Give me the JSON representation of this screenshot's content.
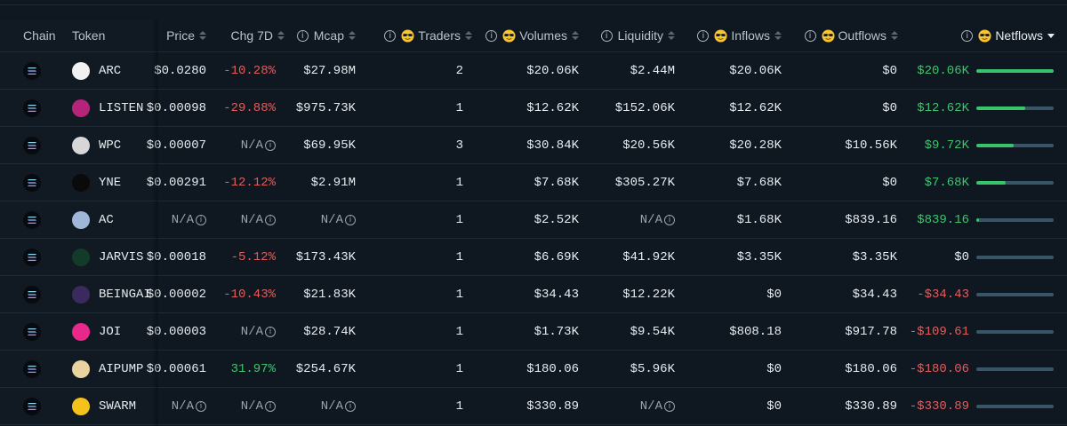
{
  "columns": {
    "chain": "Chain",
    "token": "Token",
    "price": "Price",
    "chg7d": "Chg 7D",
    "mcap": "Mcap",
    "traders": "Traders",
    "volumes": "Volumes",
    "liquidity": "Liquidity",
    "inflows": "Inflows",
    "outflows": "Outflows",
    "netflows": "Netflows"
  },
  "colors": {
    "negative": "#e35d5d",
    "positive": "#3ec46d",
    "bar_track": "#3a5566",
    "bar_fill": "#38c46a"
  },
  "rows": [
    {
      "token": "ARC",
      "price": "$0.0280",
      "chg": "-10.28%",
      "chg_dir": "neg",
      "mcap": "$27.98M",
      "traders": "2",
      "volumes": "$20.06K",
      "liquidity": "$2.44M",
      "inflows": "$20.06K",
      "outflows": "$0",
      "netflows": "$20.06K",
      "net_dir": "pos",
      "net_ratio": 1.0,
      "avatar": "#f2f2f2"
    },
    {
      "token": "LISTEN",
      "price": "$0.00098",
      "chg": "-29.88%",
      "chg_dir": "neg",
      "mcap": "$975.73K",
      "traders": "1",
      "volumes": "$12.62K",
      "liquidity": "$152.06K",
      "inflows": "$12.62K",
      "outflows": "$0",
      "netflows": "$12.62K",
      "net_dir": "pos",
      "net_ratio": 0.63,
      "avatar": "#b3247a"
    },
    {
      "token": "WPC",
      "price": "$0.00007",
      "chg": "N/A",
      "chg_dir": "na",
      "mcap": "$69.95K",
      "traders": "3",
      "volumes": "$30.84K",
      "liquidity": "$20.56K",
      "inflows": "$20.28K",
      "outflows": "$10.56K",
      "netflows": "$9.72K",
      "net_dir": "pos",
      "net_ratio": 0.48,
      "avatar": "#d7d7d7"
    },
    {
      "token": "YNE",
      "price": "$0.00291",
      "chg": "-12.12%",
      "chg_dir": "neg",
      "mcap": "$2.91M",
      "traders": "1",
      "volumes": "$7.68K",
      "liquidity": "$305.27K",
      "inflows": "$7.68K",
      "outflows": "$0",
      "netflows": "$7.68K",
      "net_dir": "pos",
      "net_ratio": 0.38,
      "avatar": "#0a0a0a"
    },
    {
      "token": "AC",
      "price": "N/A",
      "chg": "N/A",
      "chg_dir": "na",
      "mcap": "N/A",
      "traders": "1",
      "volumes": "$2.52K",
      "liquidity": "N/A",
      "inflows": "$1.68K",
      "outflows": "$839.16",
      "netflows": "$839.16",
      "net_dir": "pos",
      "net_ratio": 0.04,
      "avatar": "#9fb7d8"
    },
    {
      "token": "JARVIS",
      "price": "$0.00018",
      "chg": "-5.12%",
      "chg_dir": "neg",
      "mcap": "$173.43K",
      "traders": "1",
      "volumes": "$6.69K",
      "liquidity": "$41.92K",
      "inflows": "$3.35K",
      "outflows": "$3.35K",
      "netflows": "$0",
      "net_dir": "zero",
      "net_ratio": 0,
      "avatar": "#123b2a"
    },
    {
      "token": "BEINGAI",
      "price": "$0.00002",
      "chg": "-10.43%",
      "chg_dir": "neg",
      "mcap": "$21.83K",
      "traders": "1",
      "volumes": "$34.43",
      "liquidity": "$12.22K",
      "inflows": "$0",
      "outflows": "$34.43",
      "netflows": "-$34.43",
      "net_dir": "neg",
      "net_ratio": 0,
      "avatar": "#3a2a5e"
    },
    {
      "token": "JOI",
      "price": "$0.00003",
      "chg": "N/A",
      "chg_dir": "na",
      "mcap": "$28.74K",
      "traders": "1",
      "volumes": "$1.73K",
      "liquidity": "$9.54K",
      "inflows": "$808.18",
      "outflows": "$917.78",
      "netflows": "-$109.61",
      "net_dir": "neg",
      "net_ratio": 0,
      "avatar": "#e8288a"
    },
    {
      "token": "AIPUMP",
      "price": "$0.00061",
      "chg": "31.97%",
      "chg_dir": "pos",
      "mcap": "$254.67K",
      "traders": "1",
      "volumes": "$180.06",
      "liquidity": "$5.96K",
      "inflows": "$0",
      "outflows": "$180.06",
      "netflows": "-$180.06",
      "net_dir": "neg",
      "net_ratio": 0,
      "avatar": "#e9d4a0"
    },
    {
      "token": "SWARM",
      "price": "N/A",
      "chg": "N/A",
      "chg_dir": "na",
      "mcap": "N/A",
      "traders": "1",
      "volumes": "$330.89",
      "liquidity": "N/A",
      "inflows": "$0",
      "outflows": "$330.89",
      "netflows": "-$330.89",
      "net_dir": "neg",
      "net_ratio": 0,
      "avatar": "#f4c21b"
    }
  ]
}
